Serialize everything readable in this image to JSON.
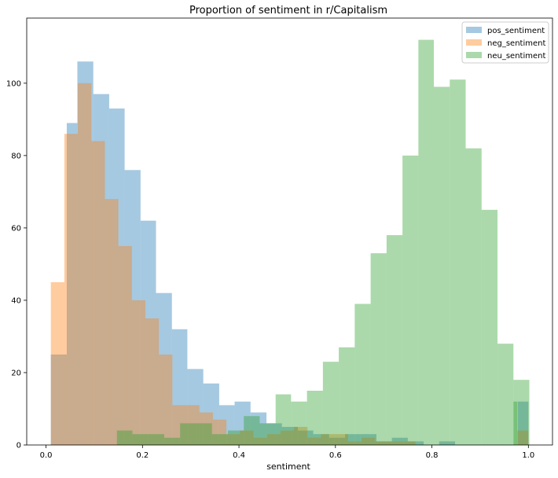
{
  "chart_data": {
    "type": "bar",
    "subtype": "histogram",
    "title": "Proportion of sentiment in r/Capitalism",
    "xlabel": "sentiment",
    "ylabel": "",
    "xlim": [
      -0.04,
      1.05
    ],
    "ylim": [
      0,
      118
    ],
    "xticks": [
      0.0,
      0.2,
      0.4,
      0.6,
      0.8,
      1.0
    ],
    "xtick_labels": [
      "0.0",
      "0.2",
      "0.4",
      "0.6",
      "0.8",
      "1.0"
    ],
    "yticks": [
      0,
      20,
      40,
      60,
      80,
      100
    ],
    "ytick_labels": [
      "0",
      "20",
      "40",
      "60",
      "80",
      "100"
    ],
    "grid": false,
    "legend_position": "top-right",
    "bar_opacity": 0.4,
    "series": [
      {
        "name": "pos_sentiment",
        "color": "#1f77b4",
        "bins": [
          [
            0.01,
            0.043,
            25
          ],
          [
            0.043,
            0.065,
            89
          ],
          [
            0.065,
            0.098,
            106
          ],
          [
            0.098,
            0.131,
            97
          ],
          [
            0.131,
            0.163,
            93
          ],
          [
            0.163,
            0.196,
            76
          ],
          [
            0.196,
            0.228,
            62
          ],
          [
            0.228,
            0.261,
            42
          ],
          [
            0.261,
            0.293,
            32
          ],
          [
            0.293,
            0.326,
            21
          ],
          [
            0.326,
            0.359,
            17
          ],
          [
            0.359,
            0.391,
            11
          ],
          [
            0.391,
            0.424,
            12
          ],
          [
            0.424,
            0.457,
            9
          ],
          [
            0.457,
            0.489,
            6
          ],
          [
            0.489,
            0.522,
            5
          ],
          [
            0.522,
            0.554,
            4
          ],
          [
            0.554,
            0.587,
            3
          ],
          [
            0.587,
            0.62,
            2
          ],
          [
            0.62,
            0.652,
            3
          ],
          [
            0.652,
            0.685,
            3
          ],
          [
            0.685,
            0.717,
            1
          ],
          [
            0.717,
            0.75,
            2
          ],
          [
            0.75,
            0.783,
            1
          ],
          [
            0.783,
            0.815,
            0
          ],
          [
            0.815,
            0.848,
            1
          ],
          [
            0.848,
            0.88,
            0
          ],
          [
            0.88,
            0.913,
            0
          ],
          [
            0.913,
            0.946,
            0
          ],
          [
            0.946,
            0.978,
            0
          ],
          [
            0.978,
            1.0,
            12
          ]
        ]
      },
      {
        "name": "neg_sentiment",
        "color": "#ff7f0e",
        "bins": [
          [
            0.01,
            0.038,
            45
          ],
          [
            0.038,
            0.066,
            86
          ],
          [
            0.066,
            0.094,
            100
          ],
          [
            0.094,
            0.122,
            84
          ],
          [
            0.122,
            0.15,
            68
          ],
          [
            0.15,
            0.178,
            55
          ],
          [
            0.178,
            0.206,
            40
          ],
          [
            0.206,
            0.234,
            35
          ],
          [
            0.234,
            0.262,
            25
          ],
          [
            0.262,
            0.29,
            11
          ],
          [
            0.29,
            0.318,
            11
          ],
          [
            0.318,
            0.346,
            9
          ],
          [
            0.346,
            0.374,
            7
          ],
          [
            0.374,
            0.402,
            3
          ],
          [
            0.402,
            0.43,
            4
          ],
          [
            0.43,
            0.458,
            2
          ],
          [
            0.458,
            0.486,
            3
          ],
          [
            0.486,
            0.514,
            4
          ],
          [
            0.514,
            0.542,
            5
          ],
          [
            0.542,
            0.57,
            2
          ],
          [
            0.57,
            0.598,
            3
          ],
          [
            0.598,
            0.626,
            3
          ],
          [
            0.626,
            0.654,
            1
          ],
          [
            0.654,
            0.682,
            2
          ],
          [
            0.682,
            0.71,
            1
          ],
          [
            0.71,
            0.738,
            1
          ],
          [
            0.738,
            0.766,
            1
          ],
          [
            0.766,
            0.794,
            0
          ],
          [
            0.794,
            0.822,
            0
          ],
          [
            0.822,
            0.85,
            0
          ],
          [
            0.85,
            0.878,
            0
          ],
          [
            0.878,
            0.906,
            0
          ],
          [
            0.906,
            0.934,
            0
          ],
          [
            0.934,
            0.962,
            0
          ],
          [
            0.962,
            0.99,
            0
          ],
          [
            0.977,
            1.0,
            4
          ]
        ]
      },
      {
        "name": "neu_sentiment",
        "color": "#2ca02c",
        "bins": [
          [
            0.015,
            0.048,
            0
          ],
          [
            0.048,
            0.081,
            0
          ],
          [
            0.081,
            0.114,
            0
          ],
          [
            0.114,
            0.147,
            0
          ],
          [
            0.147,
            0.179,
            4
          ],
          [
            0.179,
            0.212,
            3
          ],
          [
            0.212,
            0.245,
            3
          ],
          [
            0.245,
            0.278,
            2
          ],
          [
            0.278,
            0.311,
            6
          ],
          [
            0.311,
            0.344,
            6
          ],
          [
            0.344,
            0.377,
            3
          ],
          [
            0.377,
            0.41,
            4
          ],
          [
            0.41,
            0.443,
            8
          ],
          [
            0.443,
            0.476,
            6
          ],
          [
            0.476,
            0.508,
            14
          ],
          [
            0.508,
            0.541,
            12
          ],
          [
            0.541,
            0.574,
            15
          ],
          [
            0.574,
            0.607,
            23
          ],
          [
            0.607,
            0.64,
            27
          ],
          [
            0.64,
            0.673,
            39
          ],
          [
            0.673,
            0.706,
            53
          ],
          [
            0.706,
            0.739,
            58
          ],
          [
            0.739,
            0.772,
            80
          ],
          [
            0.772,
            0.804,
            112
          ],
          [
            0.804,
            0.837,
            99
          ],
          [
            0.837,
            0.87,
            101
          ],
          [
            0.87,
            0.903,
            82
          ],
          [
            0.903,
            0.936,
            65
          ],
          [
            0.936,
            0.969,
            28
          ],
          [
            0.969,
            1.002,
            18
          ],
          [
            0.969,
            0.977,
            12
          ]
        ]
      }
    ]
  }
}
